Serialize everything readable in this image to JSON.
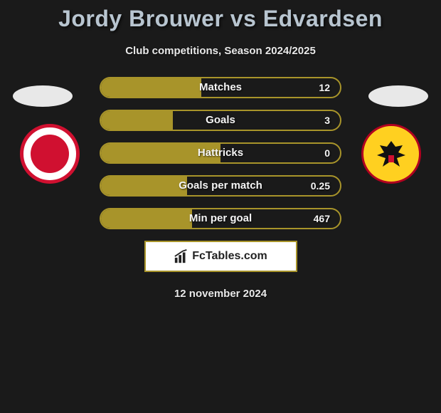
{
  "title": "Jordy Brouwer vs Edvardsen",
  "subtitle": "Club competitions, Season 2024/2025",
  "date": "12 november 2024",
  "brand": "FcTables.com",
  "colors": {
    "bar_border": "#a8942a",
    "bar_fill": "#a8942a",
    "background": "#1a1a1a",
    "title_color": "#b8c5d0",
    "text_color": "#e8e8e8",
    "club_left_primary": "#d01030",
    "club_right_bg": "#ffd020",
    "club_right_border": "#b00020"
  },
  "stats": [
    {
      "label": "Matches",
      "value": "12",
      "fill_pct": 42
    },
    {
      "label": "Goals",
      "value": "3",
      "fill_pct": 30
    },
    {
      "label": "Hattricks",
      "value": "0",
      "fill_pct": 50
    },
    {
      "label": "Goals per match",
      "value": "0.25",
      "fill_pct": 36
    },
    {
      "label": "Min per goal",
      "value": "467",
      "fill_pct": 38
    }
  ]
}
